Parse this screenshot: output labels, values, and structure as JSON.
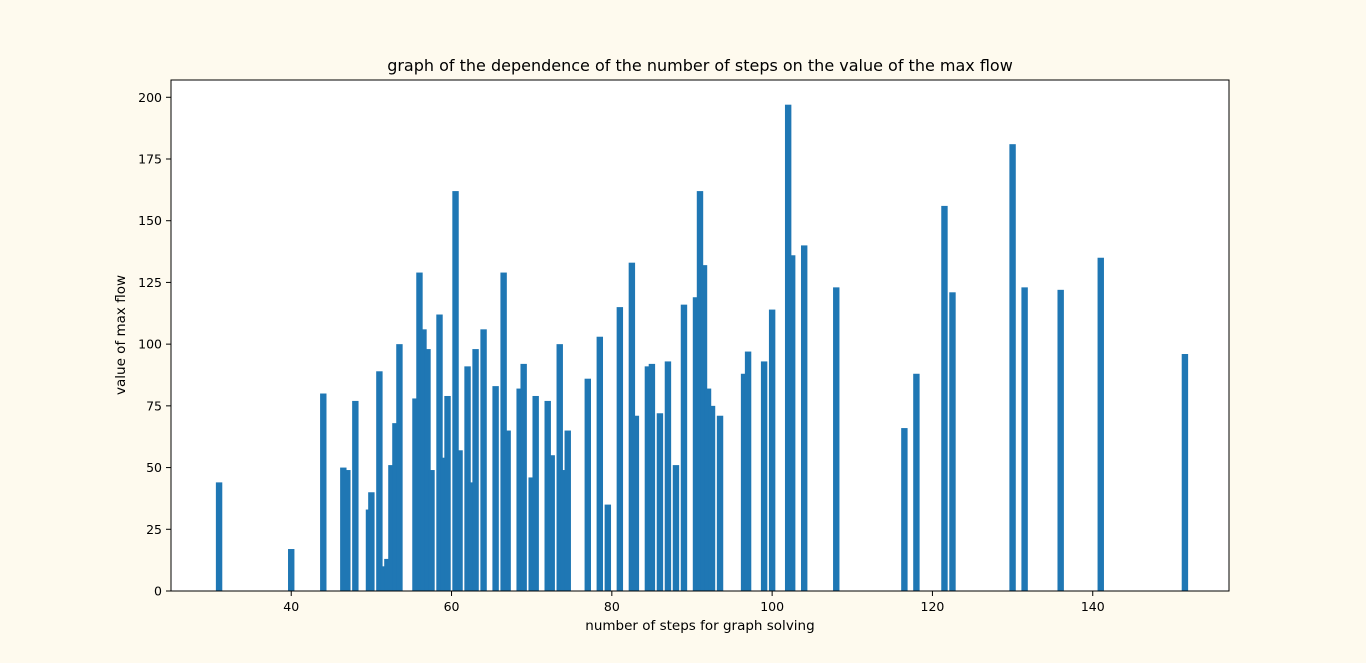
{
  "colors": {
    "figure_bg": "#fefaee",
    "axes_bg": "#ffffff",
    "bar": "#1f77b4"
  },
  "chart_data": {
    "type": "bar",
    "title": "graph of the dependence of the number of steps on the value of the max flow",
    "xlabel": "number of steps for graph solving",
    "ylabel": "value of max flow",
    "xlim": [
      25,
      157
    ],
    "ylim": [
      0,
      207
    ],
    "bar_width": 0.8,
    "x_ticks": [
      40,
      60,
      80,
      100,
      120,
      140
    ],
    "y_ticks": [
      0,
      25,
      50,
      75,
      100,
      125,
      150,
      175,
      200
    ],
    "x_tick_labels": [
      "40",
      "60",
      "80",
      "100",
      "120",
      "140"
    ],
    "y_tick_labels": [
      "0",
      "25",
      "50",
      "75",
      "100",
      "125",
      "150",
      "175",
      "200"
    ],
    "x": [
      31,
      40,
      44,
      46.5,
      47,
      48,
      49.7,
      50,
      51,
      51.5,
      52,
      52.5,
      53,
      53.5,
      55.5,
      56,
      56.5,
      57,
      57.5,
      58.5,
      59,
      59.5,
      60.5,
      61,
      62,
      62.5,
      63,
      64,
      65.5,
      66.5,
      67,
      68.5,
      69,
      70,
      70.5,
      72,
      72.5,
      73.5,
      74,
      74.5,
      77,
      78.5,
      79.5,
      81,
      82.5,
      83,
      84.5,
      85,
      86,
      87,
      88,
      89,
      90.5,
      91,
      91.5,
      92,
      92.5,
      93.5,
      96.5,
      97,
      99,
      100,
      102,
      102.5,
      104,
      108,
      116.5,
      118,
      121.5,
      122.5,
      130,
      131.5,
      136,
      141,
      151.5
    ],
    "values": [
      44,
      17,
      80,
      50,
      49,
      77,
      33,
      40,
      89,
      10,
      13,
      51,
      68,
      100,
      78,
      129,
      106,
      98,
      49,
      112,
      54,
      79,
      162,
      57,
      91,
      44,
      98,
      106,
      83,
      129,
      65,
      82,
      92,
      46,
      79,
      77,
      55,
      100,
      49,
      65,
      86,
      103,
      35,
      115,
      133,
      71,
      91,
      92,
      72,
      93,
      51,
      116,
      119,
      162,
      132,
      82,
      75,
      71,
      88,
      97,
      93,
      114,
      197,
      136,
      140,
      123,
      66,
      88,
      156,
      121,
      181,
      123,
      122,
      135,
      96
    ]
  }
}
